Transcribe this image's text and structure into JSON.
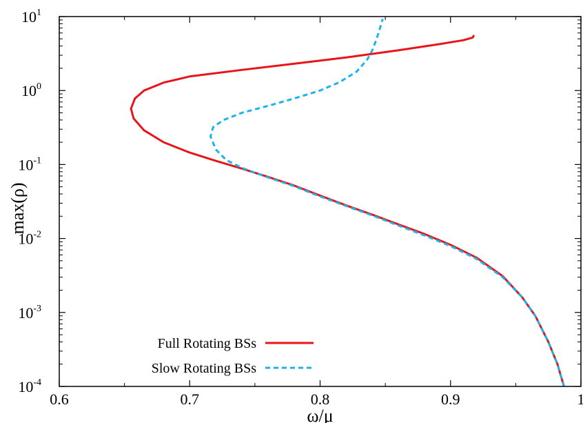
{
  "chart_data": {
    "type": "line",
    "xlabel": "ω/μ",
    "ylabel": "max(ρ)",
    "xlim": [
      0.6,
      1.0
    ],
    "ylim": [
      0.0001,
      10
    ],
    "yscale": "log",
    "x_ticks": [
      "0.6",
      "0.7",
      "0.8",
      "0.9",
      "1"
    ],
    "x_tick_values": [
      0.6,
      0.7,
      0.8,
      0.9,
      1.0
    ],
    "y_ticks": [
      {
        "base": "10",
        "exp": "-4",
        "value": 0.0001
      },
      {
        "base": "10",
        "exp": "-3",
        "value": 0.001
      },
      {
        "base": "10",
        "exp": "-2",
        "value": 0.01
      },
      {
        "base": "10",
        "exp": "-1",
        "value": 0.1
      },
      {
        "base": "10",
        "exp": "0",
        "value": 1
      },
      {
        "base": "10",
        "exp": "1",
        "value": 10
      }
    ],
    "legend_position": "bottom-left",
    "grid": false,
    "series": [
      {
        "name": "Full Rotating BSs",
        "color": "#e8141a",
        "dash": "solid",
        "points": [
          [
            0.987,
            0.0001
          ],
          [
            0.982,
            0.0002
          ],
          [
            0.975,
            0.0004
          ],
          [
            0.965,
            0.0009
          ],
          [
            0.955,
            0.0016
          ],
          [
            0.94,
            0.0031
          ],
          [
            0.92,
            0.0055
          ],
          [
            0.9,
            0.0082
          ],
          [
            0.88,
            0.0115
          ],
          [
            0.86,
            0.0155
          ],
          [
            0.84,
            0.021
          ],
          [
            0.82,
            0.028
          ],
          [
            0.8,
            0.038
          ],
          [
            0.78,
            0.052
          ],
          [
            0.76,
            0.068
          ],
          [
            0.74,
            0.088
          ],
          [
            0.72,
            0.112
          ],
          [
            0.7,
            0.145
          ],
          [
            0.68,
            0.2
          ],
          [
            0.665,
            0.29
          ],
          [
            0.657,
            0.42
          ],
          [
            0.655,
            0.57
          ],
          [
            0.658,
            0.78
          ],
          [
            0.665,
            1.0
          ],
          [
            0.68,
            1.28
          ],
          [
            0.7,
            1.55
          ],
          [
            0.74,
            1.9
          ],
          [
            0.78,
            2.3
          ],
          [
            0.82,
            2.8
          ],
          [
            0.86,
            3.5
          ],
          [
            0.89,
            4.2
          ],
          [
            0.91,
            4.8
          ],
          [
            0.917,
            5.2
          ],
          [
            0.918,
            5.6
          ]
        ]
      },
      {
        "name": "Slow Rotating BSs",
        "color": "#1ab4e8",
        "dash": "dashed",
        "points": [
          [
            0.987,
            0.0001
          ],
          [
            0.982,
            0.0002
          ],
          [
            0.975,
            0.0004
          ],
          [
            0.965,
            0.0009
          ],
          [
            0.955,
            0.0016
          ],
          [
            0.94,
            0.003
          ],
          [
            0.92,
            0.0053
          ],
          [
            0.9,
            0.0079
          ],
          [
            0.88,
            0.011
          ],
          [
            0.86,
            0.015
          ],
          [
            0.84,
            0.0205
          ],
          [
            0.82,
            0.0275
          ],
          [
            0.8,
            0.037
          ],
          [
            0.78,
            0.051
          ],
          [
            0.76,
            0.067
          ],
          [
            0.74,
            0.09
          ],
          [
            0.728,
            0.115
          ],
          [
            0.72,
            0.16
          ],
          [
            0.716,
            0.24
          ],
          [
            0.718,
            0.32
          ],
          [
            0.726,
            0.4
          ],
          [
            0.74,
            0.5
          ],
          [
            0.76,
            0.62
          ],
          [
            0.78,
            0.78
          ],
          [
            0.8,
            1.0
          ],
          [
            0.815,
            1.3
          ],
          [
            0.828,
            1.8
          ],
          [
            0.836,
            2.6
          ],
          [
            0.84,
            3.5
          ],
          [
            0.843,
            4.8
          ],
          [
            0.846,
            7.0
          ],
          [
            0.848,
            9.3
          ]
        ]
      }
    ]
  }
}
